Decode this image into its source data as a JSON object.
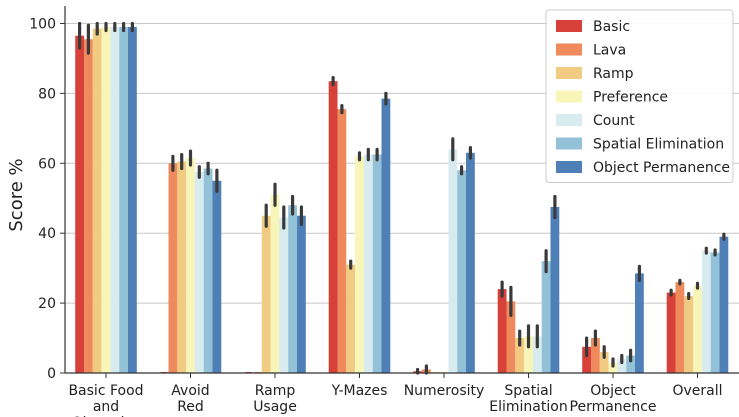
{
  "chart_data": {
    "type": "bar",
    "ylabel": "Score %",
    "xlabel": "",
    "ylim": [
      0,
      105
    ],
    "yticks": [
      0,
      20,
      40,
      60,
      80,
      100
    ],
    "grid": "horizontal",
    "legend_position": "top-right",
    "categories": [
      [
        "Basic Food",
        "and",
        "Obstacles"
      ],
      [
        "Avoid",
        "Red"
      ],
      [
        "Ramp",
        "Usage"
      ],
      [
        "Y-Mazes"
      ],
      [
        "Numerosity"
      ],
      [
        "Spatial",
        "Elimination"
      ],
      [
        "Object",
        "Permanence"
      ],
      [
        "Overall"
      ]
    ],
    "series": [
      {
        "name": "Basic",
        "color": "#d7413a",
        "values": [
          96.5,
          0,
          0,
          83.5,
          0.5,
          24,
          7.5,
          23
        ],
        "errors": [
          3.5,
          0,
          0,
          1,
          0.5,
          2,
          2.5,
          0.7
        ]
      },
      {
        "name": "Lava",
        "color": "#ee8a5c",
        "values": [
          95.5,
          60,
          0,
          75.5,
          1,
          20.5,
          10,
          26
        ],
        "errors": [
          4,
          2,
          0,
          1,
          1,
          4,
          2,
          0.5
        ]
      },
      {
        "name": "Ramp",
        "color": "#f2cb83",
        "values": [
          98.5,
          60.5,
          45,
          31,
          0,
          10,
          6,
          22
        ],
        "errors": [
          1.5,
          2,
          3,
          1,
          0,
          2,
          1.5,
          0.7
        ]
      },
      {
        "name": "Preference",
        "color": "#f7f5b8",
        "values": [
          99,
          61.5,
          51,
          62,
          0,
          10.5,
          3,
          25
        ],
        "errors": [
          1,
          2,
          3,
          1,
          0,
          3,
          1,
          0.7
        ]
      },
      {
        "name": "Count",
        "color": "#d8ecf0",
        "values": [
          99,
          57.5,
          44.5,
          62.5,
          64,
          10.5,
          4,
          35
        ],
        "errors": [
          1,
          1.5,
          3,
          1.5,
          3,
          3,
          1,
          0.7
        ]
      },
      {
        "name": "Spatial Elimination",
        "color": "#93c2d8",
        "values": [
          99,
          58.5,
          48,
          62.5,
          58,
          32,
          5,
          34.5
        ],
        "errors": [
          1,
          1.5,
          2.5,
          1.5,
          1,
          3,
          1.5,
          0.7
        ]
      },
      {
        "name": "Object Permanence",
        "color": "#4e7fb6",
        "values": [
          99,
          55,
          45,
          78.5,
          63,
          47.5,
          28.5,
          39
        ],
        "errors": [
          1,
          3,
          2.5,
          1.5,
          1.5,
          3,
          2,
          0.7
        ]
      }
    ]
  }
}
